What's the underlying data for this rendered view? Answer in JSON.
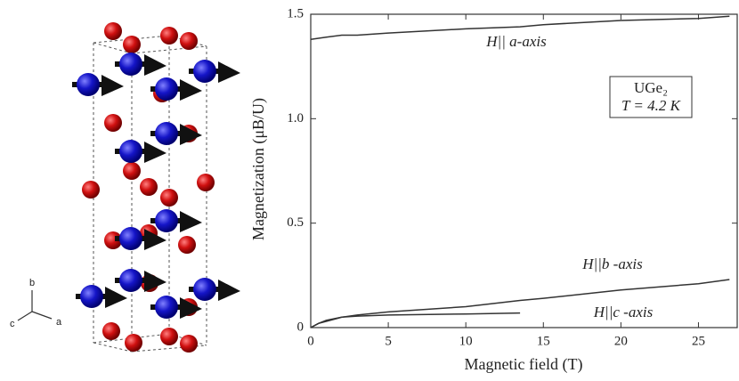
{
  "structure": {
    "axis_labels": [
      "b",
      "c",
      "a"
    ]
  },
  "chart_data": {
    "type": "line",
    "xlabel": "Magnetic field (T)",
    "ylabel": "Magnetization (μB/U)",
    "annotations": [
      "UGe₂",
      "T = 4.2 K"
    ],
    "x": [
      0,
      0.5,
      1,
      2,
      3,
      5,
      10,
      13.5,
      15,
      20,
      25,
      27
    ],
    "series": [
      {
        "name": "H|| a-axis",
        "color": "#333333",
        "values": [
          1.38,
          1.385,
          1.39,
          1.4,
          1.4,
          1.41,
          1.43,
          1.44,
          1.45,
          1.47,
          1.48,
          1.49
        ]
      },
      {
        "name": "H||b -axis",
        "color": "#333333",
        "values": [
          0,
          0.02,
          0.03,
          0.05,
          0.06,
          0.075,
          0.1,
          0.13,
          0.14,
          0.18,
          0.21,
          0.23
        ]
      },
      {
        "name": "H||c -axis",
        "color": "#333333",
        "values": [
          0,
          0.02,
          0.035,
          0.05,
          0.055,
          0.06,
          0.065,
          0.07,
          null,
          null,
          null,
          null
        ]
      }
    ],
    "xlim": [
      0,
      27.5
    ],
    "ylim": [
      0,
      1.5
    ],
    "xticks": [
      0,
      5,
      10,
      15,
      20,
      25
    ],
    "yticks": [
      0,
      0.5,
      {
        "value": 1,
        "label": "1.0"
      },
      1.5
    ]
  }
}
